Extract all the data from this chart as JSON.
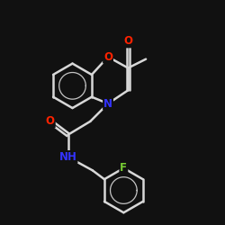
{
  "background_color": "#111111",
  "bond_color": "#d8d8d8",
  "atom_colors": {
    "O": "#ff2200",
    "N": "#3333ff",
    "F": "#77cc33"
  },
  "bond_width": 1.8,
  "figsize": [
    2.5,
    2.5
  ],
  "dpi": 100
}
